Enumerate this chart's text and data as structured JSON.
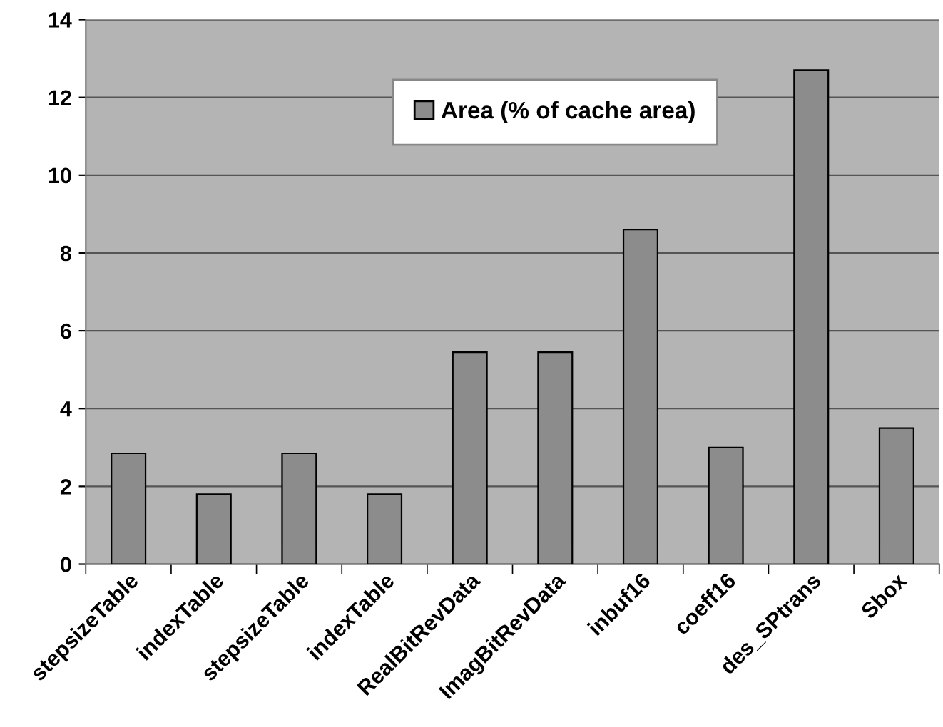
{
  "chart_data": {
    "type": "bar",
    "categories": [
      "stepsizeTable",
      "indexTable",
      "stepsizeTable",
      "indexTable",
      "RealBitRevData",
      "ImagBitRevData",
      "inbuf16",
      "coeff16",
      "des_SPtrans",
      "Sbox"
    ],
    "series": [
      {
        "name": "Area (% of cache area)",
        "color": "#8c8c8c",
        "values": [
          2.85,
          1.8,
          2.85,
          1.8,
          5.45,
          5.45,
          8.6,
          3.0,
          12.7,
          3.5
        ]
      }
    ],
    "ylim": [
      0,
      14
    ],
    "yticks": [
      0,
      2,
      4,
      6,
      8,
      10,
      12,
      14
    ],
    "grid": "y",
    "legend": "top"
  }
}
